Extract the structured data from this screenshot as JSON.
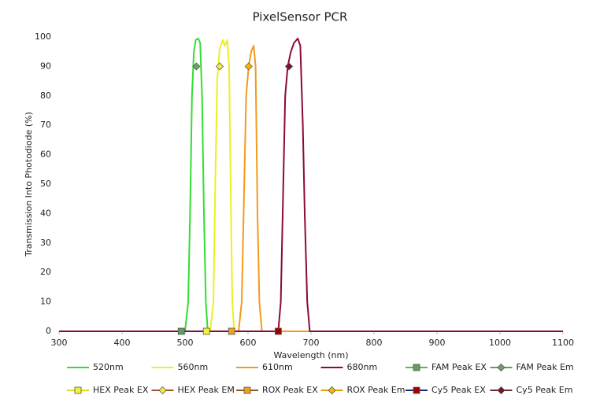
{
  "chart_data": {
    "type": "line",
    "title": "PixelSensor PCR",
    "x_label": "Wavelength (nm)",
    "y_label": "Transmission Into Photodiode (%)",
    "xlim": [
      300,
      1100
    ],
    "xticks": [
      300,
      400,
      500,
      600,
      700,
      800,
      900,
      1000,
      1100
    ],
    "ylim": [
      0,
      100
    ],
    "yticks": [
      0,
      10,
      20,
      30,
      40,
      50,
      60,
      70,
      80,
      90,
      100
    ],
    "grid": false,
    "legend": "bottom",
    "series": [
      {
        "name": "520nm",
        "color": "#33dd33",
        "x": [
          300,
          500,
          505,
          508,
          511,
          514,
          517,
          521,
          524,
          527,
          530,
          533,
          536,
          1100
        ],
        "values": [
          0,
          0,
          10,
          40,
          80,
          95,
          99,
          99.5,
          98,
          80,
          40,
          10,
          0,
          0
        ]
      },
      {
        "name": "560nm",
        "color": "#eeee22",
        "x": [
          300,
          540,
          545,
          548,
          551,
          555,
          560,
          563,
          567,
          570,
          573,
          575,
          578,
          1100
        ],
        "values": [
          0,
          0,
          10,
          50,
          85,
          96,
          99,
          97,
          99,
          90,
          40,
          10,
          0,
          0
        ]
      },
      {
        "name": "610nm",
        "color": "#f39a1e",
        "x": [
          300,
          585,
          590,
          594,
          597,
          601,
          605,
          609,
          612,
          615,
          618,
          622,
          1100
        ],
        "values": [
          0,
          0,
          10,
          50,
          80,
          90,
          95,
          97,
          90,
          40,
          10,
          0,
          0
        ]
      },
      {
        "name": "680nm",
        "color": "#8b0a3a",
        "x": [
          300,
          648,
          652,
          656,
          659,
          663,
          668,
          673,
          679,
          683,
          687,
          690,
          694,
          698,
          1100
        ],
        "values": [
          0,
          0,
          10,
          50,
          80,
          90,
          95,
          98,
          99.5,
          97,
          70,
          40,
          10,
          0,
          0
        ]
      },
      {
        "name": "FAM Peak EX",
        "color": "#70ad47",
        "marker": "square",
        "marker_color": "#5f9e5f",
        "x": [
          494
        ],
        "values": [
          0
        ]
      },
      {
        "name": "FAM Peak Em",
        "color": "#5f9e5f",
        "marker": "diamond",
        "marker_color": "#6f9f6f",
        "x": [
          518
        ],
        "values": [
          90
        ]
      },
      {
        "name": "HEX Peak EX",
        "color": "#dddd22",
        "marker": "square",
        "marker_color": "#f2f23a",
        "x": [
          534
        ],
        "values": [
          0
        ]
      },
      {
        "name": "HEX Peak EM",
        "color": "#a0522d",
        "marker": "diamond",
        "marker_color": "#eeee44",
        "x": [
          555
        ],
        "values": [
          90
        ]
      },
      {
        "name": "ROX Peak EX",
        "color": "#8a5a2a",
        "marker": "square",
        "marker_color": "#f0a020",
        "x": [
          574
        ],
        "values": [
          0
        ]
      },
      {
        "name": "ROX Peak Em",
        "color": "#e0a000",
        "marker": "diamond",
        "marker_color": "#f5b800",
        "x": [
          601
        ],
        "values": [
          90
        ]
      },
      {
        "name": "Cy5 Peak EX",
        "color": "#1a237e",
        "marker": "square",
        "marker_color": "#a00000",
        "x": [
          648
        ],
        "values": [
          0
        ]
      },
      {
        "name": "Cy5 Peak Em",
        "color": "#6b2a2a",
        "marker": "diamond",
        "marker_color": "#7a1030",
        "x": [
          665
        ],
        "values": [
          90
        ]
      }
    ]
  }
}
